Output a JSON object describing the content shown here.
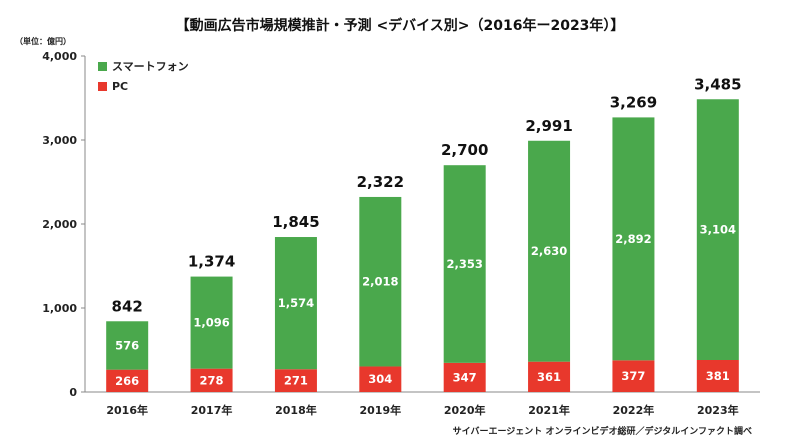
{
  "chart_data": {
    "type": "bar",
    "stacked": true,
    "title": "【動画広告市場規模推計・予測 <デバイス別>（2016年ー2023年）】",
    "unit_label": "（単位：億円）",
    "categories": [
      "2016年",
      "2017年",
      "2018年",
      "2019年",
      "2020年",
      "2021年",
      "2022年",
      "2023年"
    ],
    "series": [
      {
        "name": "PC",
        "color": "#e8382c",
        "values": [
          266,
          278,
          271,
          304,
          347,
          361,
          377,
          381
        ]
      },
      {
        "name": "スマートフォン",
        "color": "#4aa84c",
        "values": [
          576,
          1096,
          1574,
          2018,
          2353,
          2630,
          2892,
          3104
        ]
      }
    ],
    "totals": [
      842,
      1374,
      1845,
      2322,
      2700,
      2991,
      3269,
      3485
    ],
    "ylim": [
      0,
      4000
    ],
    "yticks": [
      0,
      1000,
      2000,
      3000,
      4000
    ],
    "grid": false,
    "legend_position": "top-left",
    "source": "サイバーエージェント オンラインビデオ総研／デジタルインファクト調べ"
  }
}
